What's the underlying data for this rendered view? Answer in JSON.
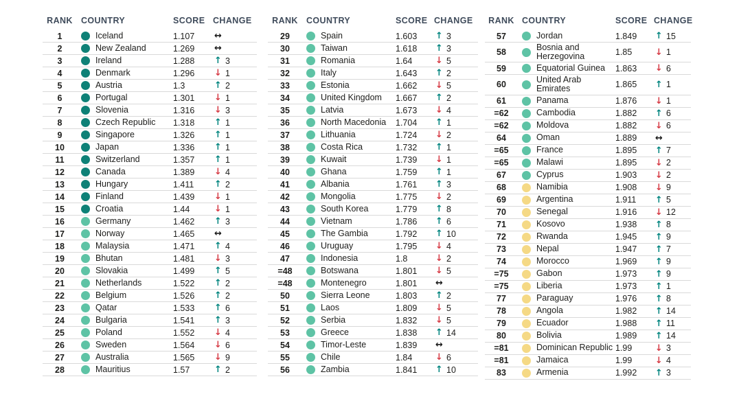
{
  "colors": {
    "header_text": "#3f4b5b",
    "body_text": "#1d1d1b",
    "divider": "#d9d9d9",
    "tier_very_high": "#0e8177",
    "tier_high": "#5ec3a5",
    "tier_medium": "#f5d985",
    "change_up": "#00847e",
    "change_down": "#d63c46",
    "change_same": "#1a1a1a"
  },
  "change_icons": {
    "up": "↑",
    "down": "↓",
    "same": "↔"
  },
  "chart_data": {
    "type": "table",
    "columns": {
      "rank": "RANK",
      "country": "COUNTRY",
      "score": "SCORE",
      "change": "CHANGE"
    },
    "tables": [
      {
        "rows": [
          {
            "rank": "1",
            "country": "Iceland",
            "score": "1.107",
            "dir": "same",
            "amt": "",
            "tier": "very_high"
          },
          {
            "rank": "2",
            "country": "New Zealand",
            "score": "1.269",
            "dir": "same",
            "amt": "",
            "tier": "very_high"
          },
          {
            "rank": "3",
            "country": "Ireland",
            "score": "1.288",
            "dir": "up",
            "amt": "3",
            "tier": "very_high"
          },
          {
            "rank": "4",
            "country": "Denmark",
            "score": "1.296",
            "dir": "down",
            "amt": "1",
            "tier": "very_high"
          },
          {
            "rank": "5",
            "country": "Austria",
            "score": "1.3",
            "dir": "up",
            "amt": "2",
            "tier": "very_high"
          },
          {
            "rank": "6",
            "country": "Portugal",
            "score": "1.301",
            "dir": "down",
            "amt": "1",
            "tier": "very_high"
          },
          {
            "rank": "7",
            "country": "Slovenia",
            "score": "1.316",
            "dir": "down",
            "amt": "3",
            "tier": "very_high"
          },
          {
            "rank": "8",
            "country": "Czech Republic",
            "score": "1.318",
            "dir": "up",
            "amt": "1",
            "tier": "very_high"
          },
          {
            "rank": "9",
            "country": "Singapore",
            "score": "1.326",
            "dir": "up",
            "amt": "1",
            "tier": "very_high"
          },
          {
            "rank": "10",
            "country": "Japan",
            "score": "1.336",
            "dir": "up",
            "amt": "1",
            "tier": "very_high"
          },
          {
            "rank": "11",
            "country": "Switzerland",
            "score": "1.357",
            "dir": "up",
            "amt": "1",
            "tier": "very_high"
          },
          {
            "rank": "12",
            "country": "Canada",
            "score": "1.389",
            "dir": "down",
            "amt": "4",
            "tier": "very_high"
          },
          {
            "rank": "13",
            "country": "Hungary",
            "score": "1.411",
            "dir": "up",
            "amt": "2",
            "tier": "very_high"
          },
          {
            "rank": "14",
            "country": "Finland",
            "score": "1.439",
            "dir": "down",
            "amt": "1",
            "tier": "very_high"
          },
          {
            "rank": "15",
            "country": "Croatia",
            "score": "1.44",
            "dir": "down",
            "amt": "1",
            "tier": "very_high"
          },
          {
            "rank": "16",
            "country": "Germany",
            "score": "1.462",
            "dir": "up",
            "amt": "3",
            "tier": "high"
          },
          {
            "rank": "17",
            "country": "Norway",
            "score": "1.465",
            "dir": "same",
            "amt": "",
            "tier": "high"
          },
          {
            "rank": "18",
            "country": "Malaysia",
            "score": "1.471",
            "dir": "up",
            "amt": "4",
            "tier": "high"
          },
          {
            "rank": "19",
            "country": "Bhutan",
            "score": "1.481",
            "dir": "down",
            "amt": "3",
            "tier": "high"
          },
          {
            "rank": "20",
            "country": "Slovakia",
            "score": "1.499",
            "dir": "up",
            "amt": "5",
            "tier": "high"
          },
          {
            "rank": "21",
            "country": "Netherlands",
            "score": "1.522",
            "dir": "up",
            "amt": "2",
            "tier": "high"
          },
          {
            "rank": "22",
            "country": "Belgium",
            "score": "1.526",
            "dir": "up",
            "amt": "2",
            "tier": "high"
          },
          {
            "rank": "23",
            "country": "Qatar",
            "score": "1.533",
            "dir": "up",
            "amt": "6",
            "tier": "high"
          },
          {
            "rank": "24",
            "country": "Bulgaria",
            "score": "1.541",
            "dir": "up",
            "amt": "3",
            "tier": "high"
          },
          {
            "rank": "25",
            "country": "Poland",
            "score": "1.552",
            "dir": "down",
            "amt": "4",
            "tier": "high"
          },
          {
            "rank": "26",
            "country": "Sweden",
            "score": "1.564",
            "dir": "down",
            "amt": "6",
            "tier": "high"
          },
          {
            "rank": "27",
            "country": "Australia",
            "score": "1.565",
            "dir": "down",
            "amt": "9",
            "tier": "high"
          },
          {
            "rank": "28",
            "country": "Mauritius",
            "score": "1.57",
            "dir": "up",
            "amt": "2",
            "tier": "high"
          }
        ]
      },
      {
        "rows": [
          {
            "rank": "29",
            "country": "Spain",
            "score": "1.603",
            "dir": "up",
            "amt": "3",
            "tier": "high"
          },
          {
            "rank": "30",
            "country": "Taiwan",
            "score": "1.618",
            "dir": "up",
            "amt": "3",
            "tier": "high"
          },
          {
            "rank": "31",
            "country": "Romania",
            "score": "1.64",
            "dir": "down",
            "amt": "5",
            "tier": "high"
          },
          {
            "rank": "32",
            "country": "Italy",
            "score": "1.643",
            "dir": "up",
            "amt": "2",
            "tier": "high"
          },
          {
            "rank": "33",
            "country": "Estonia",
            "score": "1.662",
            "dir": "down",
            "amt": "5",
            "tier": "high"
          },
          {
            "rank": "34",
            "country": "United Kingdom",
            "score": "1.667",
            "dir": "up",
            "amt": "2",
            "tier": "high"
          },
          {
            "rank": "35",
            "country": "Latvia",
            "score": "1.673",
            "dir": "down",
            "amt": "4",
            "tier": "high"
          },
          {
            "rank": "36",
            "country": "North Macedonia",
            "score": "1.704",
            "dir": "up",
            "amt": "1",
            "tier": "high"
          },
          {
            "rank": "37",
            "country": "Lithuania",
            "score": "1.724",
            "dir": "down",
            "amt": "2",
            "tier": "high"
          },
          {
            "rank": "38",
            "country": "Costa Rica",
            "score": "1.732",
            "dir": "up",
            "amt": "1",
            "tier": "high"
          },
          {
            "rank": "39",
            "country": "Kuwait",
            "score": "1.739",
            "dir": "down",
            "amt": "1",
            "tier": "high"
          },
          {
            "rank": "40",
            "country": "Ghana",
            "score": "1.759",
            "dir": "up",
            "amt": "1",
            "tier": "high"
          },
          {
            "rank": "41",
            "country": "Albania",
            "score": "1.761",
            "dir": "up",
            "amt": "3",
            "tier": "high"
          },
          {
            "rank": "42",
            "country": "Mongolia",
            "score": "1.775",
            "dir": "down",
            "amt": "2",
            "tier": "high"
          },
          {
            "rank": "43",
            "country": "South Korea",
            "score": "1.779",
            "dir": "up",
            "amt": "8",
            "tier": "high"
          },
          {
            "rank": "44",
            "country": "Vietnam",
            "score": "1.786",
            "dir": "up",
            "amt": "6",
            "tier": "high"
          },
          {
            "rank": "45",
            "country": "The Gambia",
            "score": "1.792",
            "dir": "up",
            "amt": "10",
            "tier": "high"
          },
          {
            "rank": "46",
            "country": "Uruguay",
            "score": "1.795",
            "dir": "down",
            "amt": "4",
            "tier": "high"
          },
          {
            "rank": "47",
            "country": "Indonesia",
            "score": "1.8",
            "dir": "down",
            "amt": "2",
            "tier": "high"
          },
          {
            "rank": "=48",
            "country": "Botswana",
            "score": "1.801",
            "dir": "down",
            "amt": "5",
            "tier": "high"
          },
          {
            "rank": "=48",
            "country": "Montenegro",
            "score": "1.801",
            "dir": "same",
            "amt": "",
            "tier": "high"
          },
          {
            "rank": "50",
            "country": "Sierra Leone",
            "score": "1.803",
            "dir": "up",
            "amt": "2",
            "tier": "high"
          },
          {
            "rank": "51",
            "country": "Laos",
            "score": "1.809",
            "dir": "down",
            "amt": "5",
            "tier": "high"
          },
          {
            "rank": "52",
            "country": "Serbia",
            "score": "1.832",
            "dir": "down",
            "amt": "5",
            "tier": "high"
          },
          {
            "rank": "53",
            "country": "Greece",
            "score": "1.838",
            "dir": "up",
            "amt": "14",
            "tier": "high"
          },
          {
            "rank": "54",
            "country": "Timor-Leste",
            "score": "1.839",
            "dir": "same",
            "amt": "",
            "tier": "high"
          },
          {
            "rank": "55",
            "country": "Chile",
            "score": "1.84",
            "dir": "down",
            "amt": "6",
            "tier": "high"
          },
          {
            "rank": "56",
            "country": "Zambia",
            "score": "1.841",
            "dir": "up",
            "amt": "10",
            "tier": "high"
          }
        ]
      },
      {
        "rows": [
          {
            "rank": "57",
            "country": "Jordan",
            "score": "1.849",
            "dir": "up",
            "amt": "15",
            "tier": "high"
          },
          {
            "rank": "58",
            "country": "Bosnia and Herzegovina",
            "score": "1.85",
            "dir": "down",
            "amt": "1",
            "tier": "high"
          },
          {
            "rank": "59",
            "country": "Equatorial Guinea",
            "score": "1.863",
            "dir": "down",
            "amt": "6",
            "tier": "high"
          },
          {
            "rank": "60",
            "country": "United Arab Emirates",
            "score": "1.865",
            "dir": "up",
            "amt": "1",
            "tier": "high"
          },
          {
            "rank": "61",
            "country": "Panama",
            "score": "1.876",
            "dir": "down",
            "amt": "1",
            "tier": "high"
          },
          {
            "rank": "=62",
            "country": "Cambodia",
            "score": "1.882",
            "dir": "up",
            "amt": "6",
            "tier": "high"
          },
          {
            "rank": "=62",
            "country": "Moldova",
            "score": "1.882",
            "dir": "down",
            "amt": "6",
            "tier": "high"
          },
          {
            "rank": "64",
            "country": "Oman",
            "score": "1.889",
            "dir": "same",
            "amt": "",
            "tier": "high"
          },
          {
            "rank": "=65",
            "country": "France",
            "score": "1.895",
            "dir": "up",
            "amt": "7",
            "tier": "high"
          },
          {
            "rank": "=65",
            "country": "Malawi",
            "score": "1.895",
            "dir": "down",
            "amt": "2",
            "tier": "high"
          },
          {
            "rank": "67",
            "country": "Cyprus",
            "score": "1.903",
            "dir": "down",
            "amt": "2",
            "tier": "high"
          },
          {
            "rank": "68",
            "country": "Namibia",
            "score": "1.908",
            "dir": "down",
            "amt": "9",
            "tier": "medium"
          },
          {
            "rank": "69",
            "country": "Argentina",
            "score": "1.911",
            "dir": "up",
            "amt": "5",
            "tier": "medium"
          },
          {
            "rank": "70",
            "country": "Senegal",
            "score": "1.916",
            "dir": "down",
            "amt": "12",
            "tier": "medium"
          },
          {
            "rank": "71",
            "country": "Kosovo",
            "score": "1.938",
            "dir": "up",
            "amt": "8",
            "tier": "medium"
          },
          {
            "rank": "72",
            "country": "Rwanda",
            "score": "1.945",
            "dir": "up",
            "amt": "9",
            "tier": "medium"
          },
          {
            "rank": "73",
            "country": "Nepal",
            "score": "1.947",
            "dir": "up",
            "amt": "7",
            "tier": "medium"
          },
          {
            "rank": "74",
            "country": "Morocco",
            "score": "1.969",
            "dir": "up",
            "amt": "9",
            "tier": "medium"
          },
          {
            "rank": "=75",
            "country": "Gabon",
            "score": "1.973",
            "dir": "up",
            "amt": "9",
            "tier": "medium"
          },
          {
            "rank": "=75",
            "country": "Liberia",
            "score": "1.973",
            "dir": "up",
            "amt": "1",
            "tier": "medium"
          },
          {
            "rank": "77",
            "country": "Paraguay",
            "score": "1.976",
            "dir": "up",
            "amt": "8",
            "tier": "medium"
          },
          {
            "rank": "78",
            "country": "Angola",
            "score": "1.982",
            "dir": "up",
            "amt": "14",
            "tier": "medium"
          },
          {
            "rank": "79",
            "country": "Ecuador",
            "score": "1.988",
            "dir": "up",
            "amt": "11",
            "tier": "medium"
          },
          {
            "rank": "80",
            "country": "Bolivia",
            "score": "1.989",
            "dir": "up",
            "amt": "14",
            "tier": "medium"
          },
          {
            "rank": "=81",
            "country": "Dominican Republic",
            "score": "1.99",
            "dir": "down",
            "amt": "3",
            "tier": "medium"
          },
          {
            "rank": "=81",
            "country": "Jamaica",
            "score": "1.99",
            "dir": "down",
            "amt": "4",
            "tier": "medium"
          },
          {
            "rank": "83",
            "country": "Armenia",
            "score": "1.992",
            "dir": "up",
            "amt": "3",
            "tier": "medium"
          }
        ]
      }
    ]
  }
}
